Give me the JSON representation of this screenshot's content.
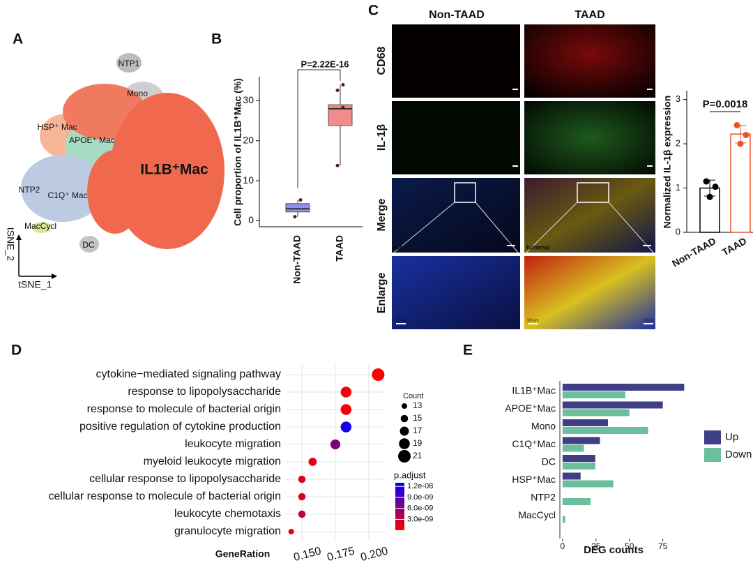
{
  "panels": [
    "A",
    "B",
    "C",
    "D",
    "E"
  ],
  "tsne": {
    "clusters": [
      "NTP1",
      "Mono",
      "HSP⁺ Mac",
      "APOE⁺ Mac",
      "IL1B⁺Mac",
      "NTP2",
      "C1Q⁺ Mac",
      "MacCycl",
      "DC"
    ],
    "x_label": "tSNE_1",
    "y_label": "tSNE_2"
  },
  "images": {
    "columns": [
      "Non-TAAD",
      "TAAD"
    ],
    "rows": [
      "CD68",
      "IL-1β",
      "Merge",
      "Enlarge"
    ],
    "region_label": "lumenal",
    "scale_bar": "100 μm"
  },
  "chart_data": [
    {
      "type": "box",
      "y_label": "Cell proportion of IL1B⁺Mac (%)",
      "categories": [
        "Non-TAAD",
        "TAAD"
      ],
      "boxes": [
        {
          "min": 1.0,
          "q1": 2.2,
          "median": 3.0,
          "q3": 4.3,
          "max": 5.2,
          "points": [
            5.2,
            1.0
          ]
        },
        {
          "min": 13.8,
          "q1": 23.8,
          "median": 28.0,
          "q3": 29.0,
          "max": 34.0,
          "points": [
            34.0,
            32.6,
            28.3,
            13.8
          ]
        }
      ],
      "colors": [
        "#8f8fe8",
        "#f28c8c"
      ],
      "annotation": "P=2.22E-16",
      "ylim": [
        -1.5,
        36
      ],
      "yticks": [
        0,
        10,
        20,
        30
      ]
    },
    {
      "type": "bar",
      "y_label": "Normalized IL-1β expression",
      "categories": [
        "Non-TAAD",
        "TAAD"
      ],
      "values": [
        1.0,
        2.22
      ],
      "errors": [
        0.18,
        0.2
      ],
      "points": [
        [
          1.15,
          1.03,
          0.8
        ],
        [
          2.42,
          2.2,
          2.0
        ]
      ],
      "colors": [
        "#000000",
        "#e8562a"
      ],
      "annotation": "P=0.0018",
      "ylim": [
        0,
        3.2
      ],
      "yticks": [
        0,
        1,
        2,
        3
      ]
    },
    {
      "type": "scatter",
      "x_label": "GeneRation",
      "categories": [
        "cytokine−mediated signaling pathway",
        "response to lipopolysaccharide",
        "response to molecule of bacterial origin",
        "positive regulation of cytokine production",
        "leukocyte migration",
        "myeloid leukocyte migration",
        "cellular response to lipopolysaccharide",
        "cellular response to molecule of bacterial origin",
        "leukocyte chemotaxis",
        "granulocyte migration"
      ],
      "values": [
        0.207,
        0.183,
        0.183,
        0.183,
        0.175,
        0.158,
        0.15,
        0.15,
        0.15,
        0.142
      ],
      "sizes": [
        21,
        19,
        19,
        19,
        18,
        16,
        15,
        15,
        15,
        13
      ],
      "color_values": [
        1e-10,
        6e-10,
        6e-10,
        1.2e-08,
        6.5e-09,
        1.5e-09,
        2e-09,
        2e-09,
        3.5e-09,
        1e-09
      ],
      "xlim": [
        0.138,
        0.212
      ],
      "xticks": [
        {
          "value": 0.15,
          "label": "0.150"
        },
        {
          "value": 0.175,
          "label": "0.175"
        },
        {
          "value": 0.2,
          "label": "0.200"
        }
      ],
      "size_title": "Count",
      "size_ticks": [
        13,
        15,
        17,
        19,
        21
      ],
      "color_title": "p.adjust",
      "color_lim": [
        5e-11,
        1.3e-08
      ],
      "color_low": "#ff0000",
      "color_high": "#0000ff",
      "color_ticks": [
        {
          "value": 1.2e-08,
          "label": "1.2e-08"
        },
        {
          "value": 9e-09,
          "label": "9.0e-09"
        },
        {
          "value": 6e-09,
          "label": "6.0e-09"
        },
        {
          "value": 3e-09,
          "label": "3.0e-09"
        }
      ],
      "grid": true
    },
    {
      "type": "bar",
      "orientation": "horizontal",
      "x_label": "DEG  counts",
      "categories": [
        "IL1B⁺Mac",
        "APOE⁺Mac",
        "Mono",
        "C1Q⁺Mac",
        "DC",
        "HSP⁺Mac",
        "NTP2",
        "MacCycl"
      ],
      "series": [
        {
          "name": "Up",
          "color": "#3f3f86",
          "values": [
            91,
            75,
            34,
            28,
            24.5,
            13.5,
            0,
            0
          ]
        },
        {
          "name": "Down",
          "color": "#6cbf9c",
          "values": [
            47,
            50,
            64,
            16,
            24.5,
            38,
            21,
            2
          ]
        }
      ],
      "xlim": [
        -2,
        95
      ],
      "xticks": [
        0,
        25,
        50,
        75
      ],
      "legend": "right"
    }
  ]
}
